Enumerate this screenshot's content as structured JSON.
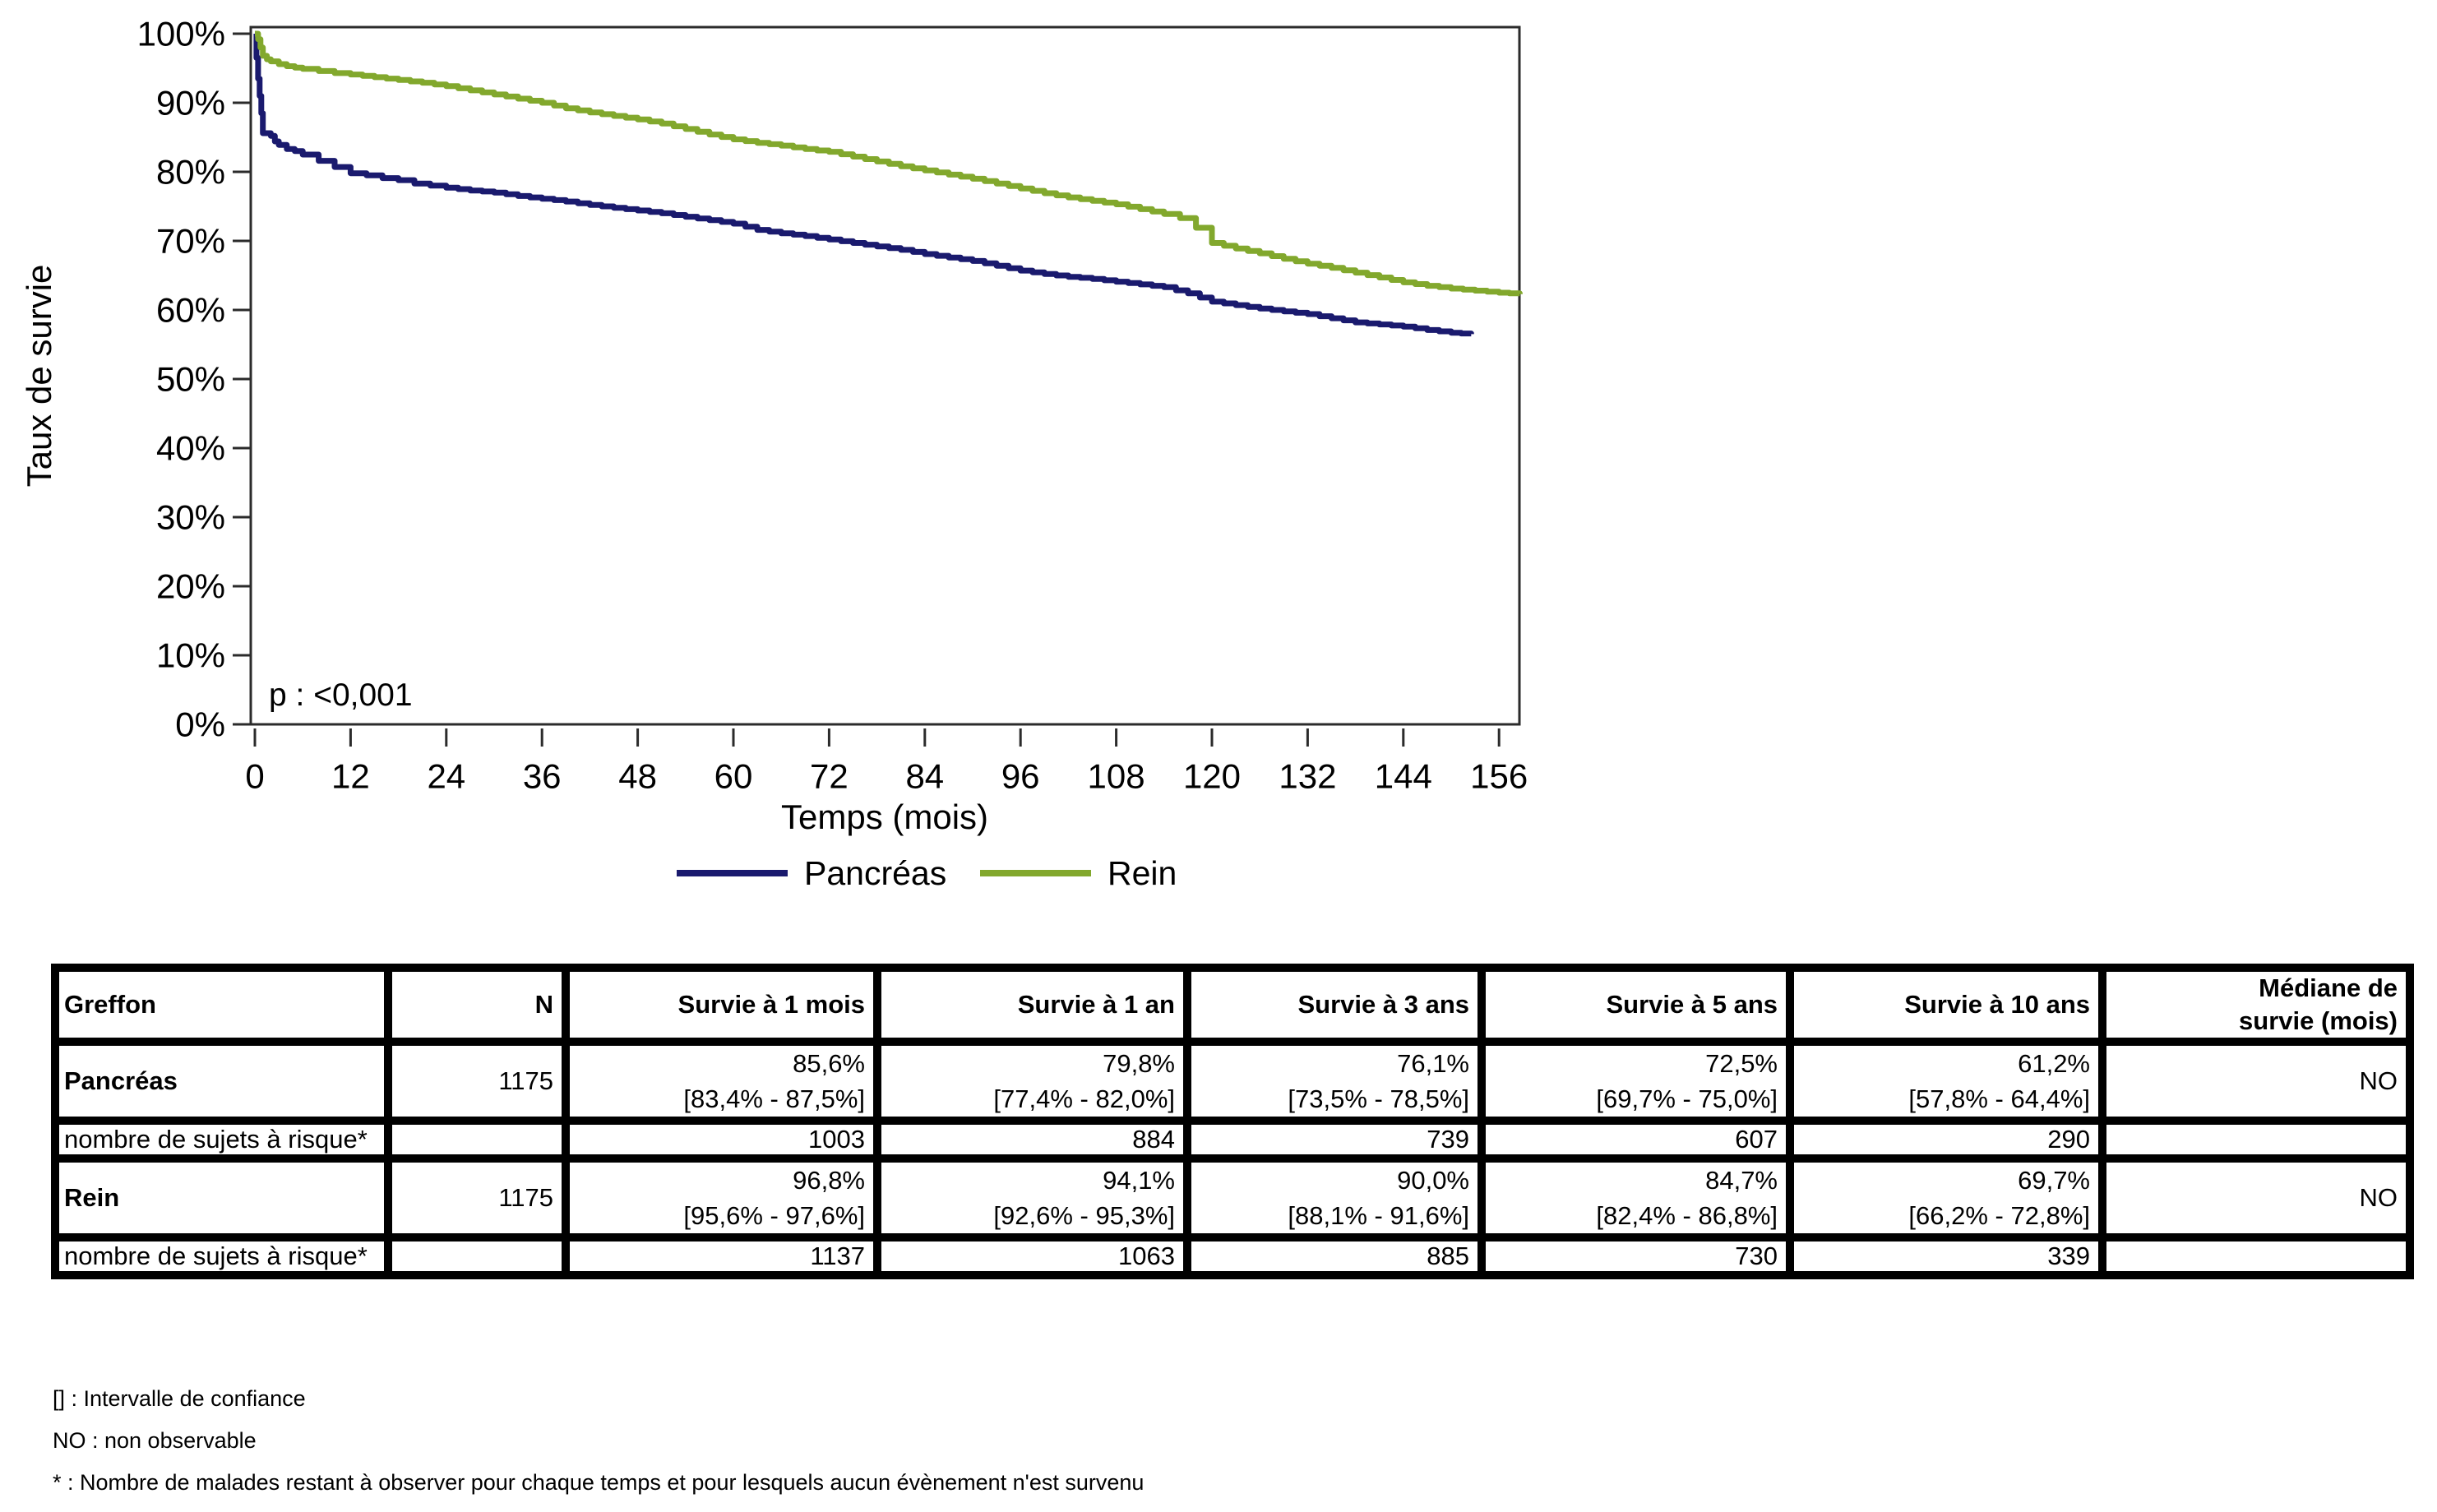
{
  "chart": {
    "y_axis_label": "Taux de survie",
    "x_axis_label": "Temps (mois)",
    "p_value_text": "p : <0,001",
    "y_ticks": [
      "100%",
      "90%",
      "80%",
      "70%",
      "60%",
      "50%",
      "40%",
      "30%",
      "20%",
      "10%",
      "0%"
    ],
    "x_ticks": [
      "0",
      "12",
      "24",
      "36",
      "48",
      "60",
      "72",
      "84",
      "96",
      "108",
      "120",
      "132",
      "144",
      "156"
    ],
    "axis_color": "#2b2b2b"
  },
  "chart_data": {
    "type": "line",
    "subtype": "kaplan-meier-step",
    "title": "",
    "xlabel": "Temps (mois)",
    "ylabel": "Taux de survie",
    "xlim": [
      0,
      158.6
    ],
    "ylim": [
      0,
      100
    ],
    "x_tick_step": 12,
    "y_tick_step_percent": 10,
    "grid": false,
    "legend_position": "bottom",
    "p_value": "p : <0,001",
    "series": [
      {
        "name": "Pancréas",
        "color": "#1a1a6e",
        "points": [
          [
            0,
            100
          ],
          [
            0.2,
            96.5
          ],
          [
            0.4,
            93.5
          ],
          [
            0.6,
            91
          ],
          [
            0.8,
            88.5
          ],
          [
            1,
            85.6
          ],
          [
            2,
            85.2
          ],
          [
            2.5,
            84.4
          ],
          [
            3,
            83.9
          ],
          [
            4,
            83.3
          ],
          [
            5,
            83
          ],
          [
            6,
            82.5
          ],
          [
            8,
            81.6
          ],
          [
            10,
            80.7
          ],
          [
            12,
            79.8
          ],
          [
            14,
            79.5
          ],
          [
            16,
            79.1
          ],
          [
            18,
            78.8
          ],
          [
            20,
            78.3
          ],
          [
            22,
            78
          ],
          [
            24,
            77.7
          ],
          [
            27,
            77.3
          ],
          [
            30,
            77
          ],
          [
            33,
            76.5
          ],
          [
            36,
            76.1
          ],
          [
            39,
            75.7
          ],
          [
            42,
            75.2
          ],
          [
            45,
            74.8
          ],
          [
            48,
            74.4
          ],
          [
            51,
            74
          ],
          [
            54,
            73.5
          ],
          [
            57,
            73
          ],
          [
            60,
            72.5
          ],
          [
            63,
            71.6
          ],
          [
            66,
            71.1
          ],
          [
            69,
            70.7
          ],
          [
            72,
            70.2
          ],
          [
            75,
            69.7
          ],
          [
            78,
            69.2
          ],
          [
            81,
            68.7
          ],
          [
            84,
            68.1
          ],
          [
            87,
            67.6
          ],
          [
            90,
            67.1
          ],
          [
            93,
            66.4
          ],
          [
            96,
            65.7
          ],
          [
            99,
            65.2
          ],
          [
            102,
            64.8
          ],
          [
            105,
            64.5
          ],
          [
            108,
            64.1
          ],
          [
            111,
            63.7
          ],
          [
            114,
            63.3
          ],
          [
            117,
            62.4
          ],
          [
            120,
            61.2
          ],
          [
            123,
            60.7
          ],
          [
            126,
            60.2
          ],
          [
            129,
            59.8
          ],
          [
            132,
            59.4
          ],
          [
            135,
            58.8
          ],
          [
            138,
            58.2
          ],
          [
            141,
            57.9
          ],
          [
            144,
            57.6
          ],
          [
            147,
            57.1
          ],
          [
            150,
            56.7
          ],
          [
            152.5,
            56.5
          ]
        ]
      },
      {
        "name": "Rein",
        "color": "#82a82d",
        "points": [
          [
            0,
            100
          ],
          [
            0.4,
            99.2
          ],
          [
            0.7,
            98
          ],
          [
            1,
            96.8
          ],
          [
            1.5,
            96.3
          ],
          [
            2,
            96
          ],
          [
            3,
            95.6
          ],
          [
            4,
            95.3
          ],
          [
            5,
            95.1
          ],
          [
            6,
            94.9
          ],
          [
            8,
            94.6
          ],
          [
            10,
            94.3
          ],
          [
            12,
            94.1
          ],
          [
            15,
            93.7
          ],
          [
            18,
            93.3
          ],
          [
            21,
            92.9
          ],
          [
            24,
            92.4
          ],
          [
            27,
            91.8
          ],
          [
            30,
            91.2
          ],
          [
            33,
            90.6
          ],
          [
            36,
            90
          ],
          [
            39,
            89.2
          ],
          [
            42,
            88.6
          ],
          [
            45,
            88.1
          ],
          [
            48,
            87.6
          ],
          [
            51,
            87
          ],
          [
            54,
            86.2
          ],
          [
            57,
            85.4
          ],
          [
            60,
            84.7
          ],
          [
            63,
            84.2
          ],
          [
            66,
            83.8
          ],
          [
            69,
            83.3
          ],
          [
            72,
            82.9
          ],
          [
            75,
            82.2
          ],
          [
            78,
            81.5
          ],
          [
            81,
            80.8
          ],
          [
            84,
            80.2
          ],
          [
            87,
            79.6
          ],
          [
            90,
            79
          ],
          [
            93,
            78.3
          ],
          [
            96,
            77.6
          ],
          [
            99,
            76.9
          ],
          [
            102,
            76.3
          ],
          [
            105,
            75.8
          ],
          [
            108,
            75.3
          ],
          [
            111,
            74.6
          ],
          [
            114,
            73.9
          ],
          [
            116,
            73.3
          ],
          [
            118,
            71.9
          ],
          [
            120,
            69.7
          ],
          [
            123,
            68.9
          ],
          [
            126,
            68.2
          ],
          [
            129,
            67.4
          ],
          [
            132,
            66.7
          ],
          [
            135,
            66.1
          ],
          [
            138,
            65.4
          ],
          [
            141,
            64.7
          ],
          [
            144,
            64
          ],
          [
            147,
            63.5
          ],
          [
            150,
            63.1
          ],
          [
            153,
            62.8
          ],
          [
            156,
            62.5
          ],
          [
            158.6,
            62.3
          ]
        ]
      }
    ]
  },
  "table": {
    "headers": {
      "greffon": "Greffon",
      "n": "N",
      "s1m": "Survie à 1 mois",
      "s1a": "Survie à 1 an",
      "s3a": "Survie à 3 ans",
      "s5a": "Survie à 5 ans",
      "s10a": "Survie à 10 ans",
      "median_l1": "Médiane de",
      "median_l2": "survie (mois)"
    },
    "pancreas": {
      "label": "Pancréas",
      "n": "1175",
      "values": [
        "85,6%",
        "79,8%",
        "76,1%",
        "72,5%",
        "61,2%"
      ],
      "cis": [
        "[83,4% - 87,5%]",
        "[77,4% - 82,0%]",
        "[73,5% - 78,5%]",
        "[69,7% - 75,0%]",
        "[57,8% - 64,4%]"
      ],
      "median": "NO"
    },
    "pancreas_risk": {
      "label": "nombre de sujets à risque*",
      "values": [
        "1003",
        "884",
        "739",
        "607",
        "290"
      ]
    },
    "rein": {
      "label": "Rein",
      "n": "1175",
      "values": [
        "96,8%",
        "94,1%",
        "90,0%",
        "84,7%",
        "69,7%"
      ],
      "cis": [
        "[95,6% - 97,6%]",
        "[92,6% - 95,3%]",
        "[88,1% - 91,6%]",
        "[82,4% - 86,8%]",
        "[66,2% - 72,8%]"
      ],
      "median": "NO"
    },
    "rein_risk": {
      "label": "nombre de sujets à risque*",
      "values": [
        "1137",
        "1063",
        "885",
        "730",
        "339"
      ]
    }
  },
  "footnotes": [
    "[] : Intervalle de confiance",
    "NO : non observable",
    "* : Nombre de malades restant à observer pour chaque temps et pour lesquels aucun évènement n'est survenu"
  ]
}
